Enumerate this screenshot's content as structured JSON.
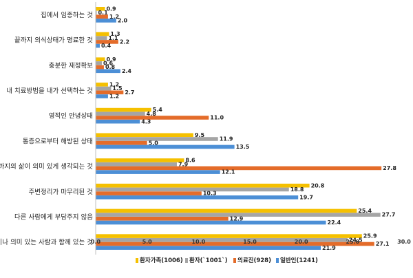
{
  "chart_data": {
    "type": "bar",
    "orientation": "horizontal",
    "categories": [
      "집에서 임종하는 것",
      "끝까지 의식상태가 명료한 것",
      "충분한 재정확보",
      "내 치료방법을 내가 선택하는 것",
      "영적인 안녕상태",
      "통증으로부터 해방된 상태",
      "지금까지의 삶이 의미 있게 생각되는 것",
      "주변정리가 마무리된 것",
      "다른 사람에게 부담주지 않음",
      "가족이나 의미 있는 사람과 함께 있는 것"
    ],
    "series": [
      {
        "name": "환자가족(1006)",
        "color": "#F5C000",
        "values": [
          0.9,
          1.3,
          0.9,
          1.2,
          5.4,
          9.5,
          8.6,
          20.8,
          25.4,
          25.9
        ]
      },
      {
        "name": "환자(`1001`)",
        "color": "#A5A5A5",
        "values": [
          0.1,
          1.1,
          0.6,
          1.5,
          4.8,
          11.9,
          7.9,
          18.8,
          27.7,
          24.5
        ]
      },
      {
        "name": "의료진(928)",
        "color": "#E46C2A",
        "values": [
          1.2,
          2.2,
          0.8,
          2.7,
          11.0,
          5.0,
          27.8,
          10.3,
          12.9,
          27.1
        ]
      },
      {
        "name": "일반인(1241)",
        "color": "#4C8FD6",
        "values": [
          2.0,
          0.4,
          2.4,
          1.2,
          4.3,
          13.5,
          12.1,
          19.7,
          22.4,
          21.9
        ]
      }
    ],
    "xlim": [
      0,
      30
    ],
    "xticks": [
      "0.0",
      "5.0",
      "10.0",
      "15.0",
      "20.0",
      "25.0",
      "30.0"
    ],
    "grid": false,
    "legend_position": "bottom"
  }
}
